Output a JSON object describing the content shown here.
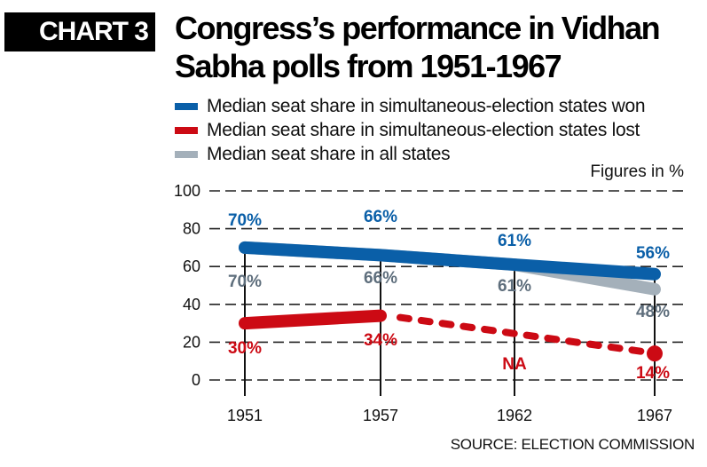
{
  "header": {
    "badge": "CHART 3",
    "title": "Congress’s  performance in Vidhan Sabha polls from 1951-1967"
  },
  "note": "Figures in %",
  "source": "SOURCE: ELECTION COMMISSION",
  "colors": {
    "won": "#0a5fa8",
    "lost": "#cc0a14",
    "all": "#a4b0ba",
    "all_label": "#5e6e7c"
  },
  "chart_data": {
    "type": "line",
    "title": "Congress’s  performance in Vidhan Sabha polls from 1951-1967",
    "xlabel": "",
    "ylabel": "",
    "categories": [
      "1951",
      "1957",
      "1962",
      "1967"
    ],
    "yticks": [
      0,
      20,
      40,
      60,
      80,
      100
    ],
    "ylim": [
      0,
      100
    ],
    "grid": true,
    "legend_position": "top-left",
    "series": [
      {
        "name": "Median seat share in simultaneous-election states won",
        "key": "won",
        "values": [
          70,
          66,
          61,
          56
        ],
        "labels": [
          "70%",
          "66%",
          "61%",
          "56%"
        ]
      },
      {
        "name": "Median seat share in simultaneous-election states lost",
        "key": "lost",
        "values": [
          30,
          34,
          null,
          14
        ],
        "labels": [
          "30%",
          "34%",
          "NA",
          "14%"
        ],
        "note": "1962 not available; dashed line bridges 1957 to 1967"
      },
      {
        "name": "Median seat share in all states",
        "key": "all",
        "values": [
          70,
          66,
          61,
          48
        ],
        "labels": [
          "70%",
          "66%",
          "61%",
          "48%"
        ]
      }
    ]
  }
}
